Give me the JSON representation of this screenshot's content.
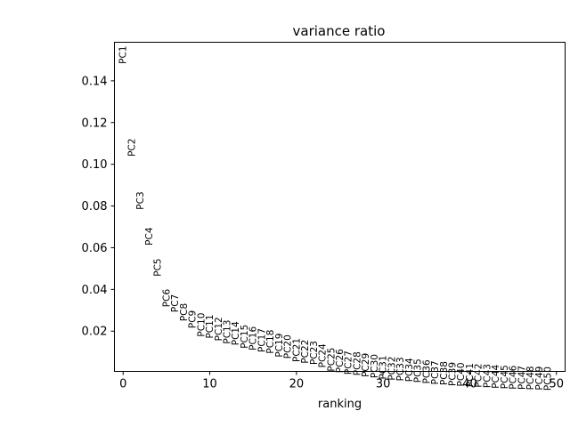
{
  "chart_data": {
    "type": "scatter",
    "title": "variance ratio",
    "xlabel": "ranking",
    "ylabel": "",
    "xlim": [
      -1,
      51
    ],
    "ylim": [
      0.0007,
      0.1585
    ],
    "x_ticks": [
      0,
      10,
      20,
      30,
      40,
      50
    ],
    "y_ticks": [
      0.02,
      0.04,
      0.06,
      0.08,
      0.1,
      0.12,
      0.14
    ],
    "y_tick_labels": [
      "0.02",
      "0.04",
      "0.06",
      "0.08",
      "0.10",
      "0.12",
      "0.14"
    ],
    "x_tick_labels": [
      "0",
      "10",
      "20",
      "30",
      "40",
      "50"
    ],
    "grid": false,
    "points": [
      {
        "label": "PC1",
        "x": 0,
        "y": 0.1568
      },
      {
        "label": "PC2",
        "x": 1,
        "y": 0.1124
      },
      {
        "label": "PC3",
        "x": 2,
        "y": 0.0869
      },
      {
        "label": "PC4",
        "x": 3,
        "y": 0.0698
      },
      {
        "label": "PC5",
        "x": 4,
        "y": 0.0549
      },
      {
        "label": "PC6",
        "x": 5,
        "y": 0.0402
      },
      {
        "label": "PC7",
        "x": 6,
        "y": 0.0377
      },
      {
        "label": "PC8",
        "x": 7,
        "y": 0.0334
      },
      {
        "label": "PC9",
        "x": 8,
        "y": 0.03
      },
      {
        "label": "PC10",
        "x": 9,
        "y": 0.0288
      },
      {
        "label": "PC11",
        "x": 10,
        "y": 0.028
      },
      {
        "label": "PC12",
        "x": 11,
        "y": 0.0268
      },
      {
        "label": "PC13",
        "x": 12,
        "y": 0.0254
      },
      {
        "label": "PC14",
        "x": 13,
        "y": 0.0247
      },
      {
        "label": "PC15",
        "x": 14,
        "y": 0.0232
      },
      {
        "label": "PC16",
        "x": 15,
        "y": 0.0223
      },
      {
        "label": "PC17",
        "x": 16,
        "y": 0.0214
      },
      {
        "label": "PC18",
        "x": 17,
        "y": 0.0207
      },
      {
        "label": "PC19",
        "x": 18,
        "y": 0.019
      },
      {
        "label": "PC20",
        "x": 19,
        "y": 0.0183
      },
      {
        "label": "PC21",
        "x": 20,
        "y": 0.0167
      },
      {
        "label": "PC22",
        "x": 21,
        "y": 0.016
      },
      {
        "label": "PC23",
        "x": 22,
        "y": 0.0154
      },
      {
        "label": "PC24",
        "x": 23,
        "y": 0.014
      },
      {
        "label": "PC25",
        "x": 24,
        "y": 0.0122
      },
      {
        "label": "PC26",
        "x": 25,
        "y": 0.0115
      },
      {
        "label": "PC27",
        "x": 26,
        "y": 0.0107
      },
      {
        "label": "PC28",
        "x": 27,
        "y": 0.0102
      },
      {
        "label": "PC29",
        "x": 28,
        "y": 0.0095
      },
      {
        "label": "PC30",
        "x": 29,
        "y": 0.009
      },
      {
        "label": "PC31",
        "x": 30,
        "y": 0.0084
      },
      {
        "label": "PC32",
        "x": 31,
        "y": 0.0079
      },
      {
        "label": "PC33",
        "x": 32,
        "y": 0.0076
      },
      {
        "label": "PC34",
        "x": 33,
        "y": 0.0072
      },
      {
        "label": "PC35",
        "x": 34,
        "y": 0.0068
      },
      {
        "label": "PC36",
        "x": 35,
        "y": 0.0063
      },
      {
        "label": "PC37",
        "x": 36,
        "y": 0.0059
      },
      {
        "label": "PC38",
        "x": 37,
        "y": 0.0056
      },
      {
        "label": "PC39",
        "x": 38,
        "y": 0.0052
      },
      {
        "label": "PC40",
        "x": 39,
        "y": 0.005
      },
      {
        "label": "PC41",
        "x": 40,
        "y": 0.0047
      },
      {
        "label": "PC42",
        "x": 41,
        "y": 0.0045
      },
      {
        "label": "PC43",
        "x": 42,
        "y": 0.0043
      },
      {
        "label": "PC44",
        "x": 43,
        "y": 0.004
      },
      {
        "label": "PC45",
        "x": 44,
        "y": 0.0038
      },
      {
        "label": "PC46",
        "x": 45,
        "y": 0.0036
      },
      {
        "label": "PC47",
        "x": 46,
        "y": 0.0035
      },
      {
        "label": "PC48",
        "x": 47,
        "y": 0.0033
      },
      {
        "label": "PC49",
        "x": 48,
        "y": 0.0032
      },
      {
        "label": "PC50",
        "x": 49,
        "y": 0.003
      }
    ]
  }
}
